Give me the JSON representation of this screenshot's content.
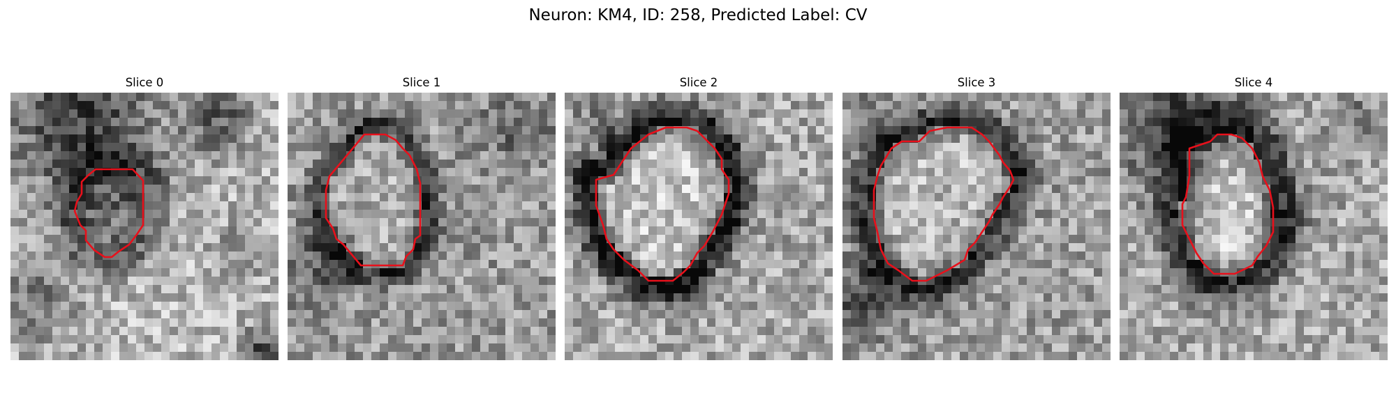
{
  "figure": {
    "title": "Neuron: KM4, ID: 258, Predicted Label: CV"
  },
  "colors": {
    "contour": "#e8101b",
    "background": "#ffffff"
  },
  "panels": [
    {
      "title": "Slice 0"
    },
    {
      "title": "Slice 1"
    },
    {
      "title": "Slice 2"
    },
    {
      "title": "Slice 3"
    },
    {
      "title": "Slice 4"
    }
  ]
}
